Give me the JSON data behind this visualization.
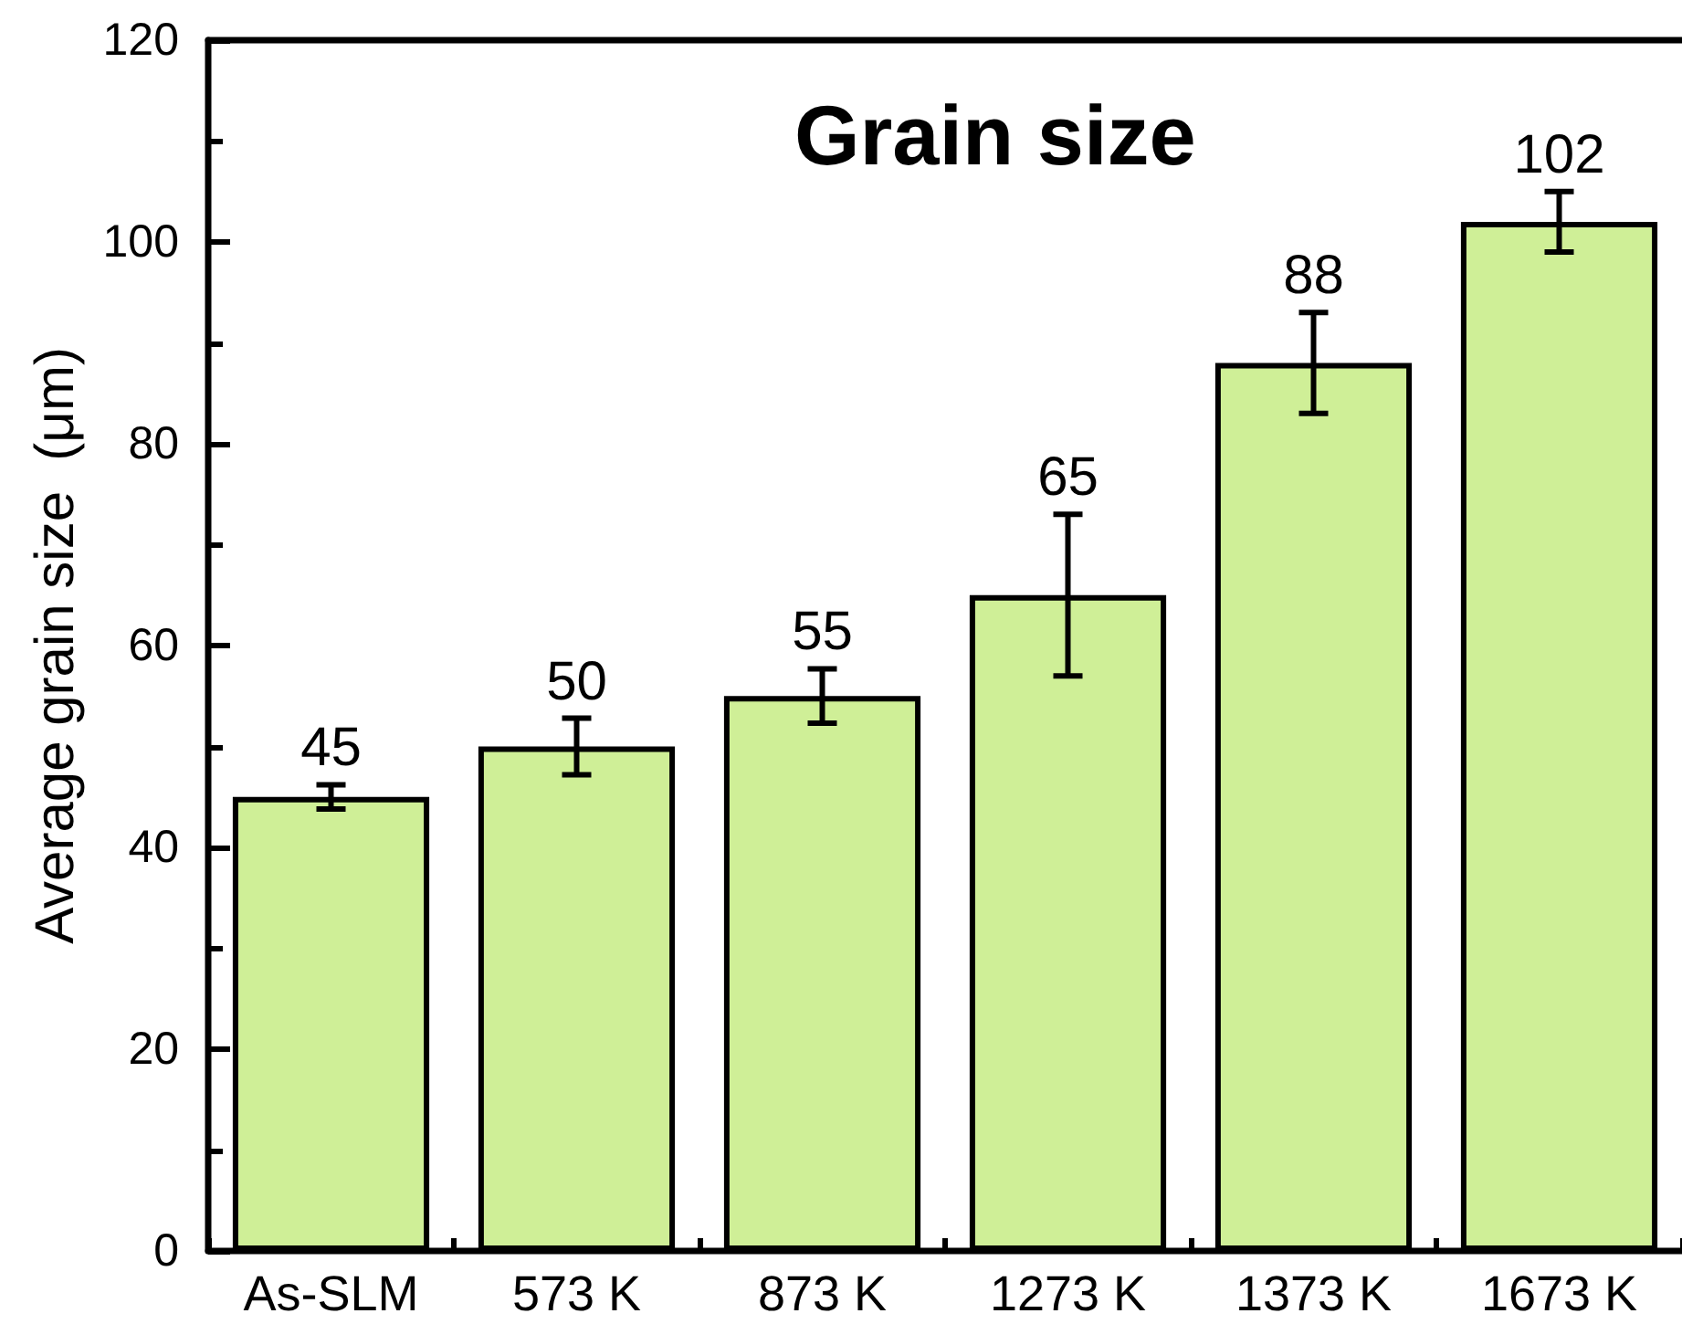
{
  "chart_data": {
    "type": "bar",
    "title": "Grain size",
    "ylabel": "Average grain size  (μm)",
    "categories": [
      "As-SLM",
      "573 K",
      "873 K",
      "1273 K",
      "1373 K",
      "1673 K"
    ],
    "values": [
      45,
      50,
      55,
      65,
      88,
      102
    ],
    "errors": [
      1.2,
      2.8,
      2.7,
      8,
      5,
      3
    ],
    "color": "#cfef97",
    "ylim": [
      0,
      120
    ],
    "yticks": [
      0,
      {
        "value": 10,
        "label": null
      },
      20,
      {
        "value": 30,
        "label": null
      },
      40,
      {
        "value": 50,
        "label": null
      },
      60,
      {
        "value": 70,
        "label": null
      },
      80,
      {
        "value": 90,
        "label": null
      },
      100,
      {
        "value": 110,
        "label": null
      },
      120
    ],
    "data_labels": true
  }
}
